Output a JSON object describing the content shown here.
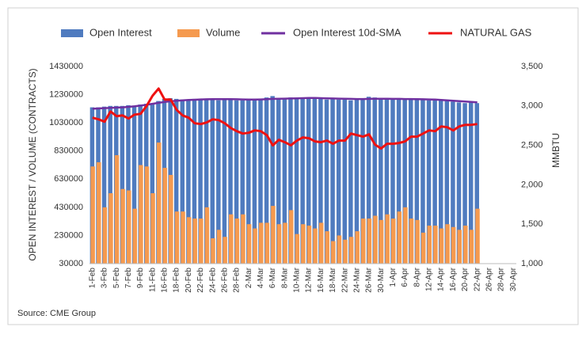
{
  "chart_data": {
    "type": "bar",
    "categories": [
      "1-Feb",
      null,
      "3-Feb",
      null,
      "5-Feb",
      null,
      "7-Feb",
      null,
      "9-Feb",
      null,
      "11-Feb",
      null,
      "16-Feb",
      null,
      "18-Feb",
      null,
      "20-Feb",
      null,
      "22-Feb",
      null,
      "24-Feb",
      null,
      "26-Feb",
      null,
      "28-Feb",
      null,
      "2-Mar",
      null,
      "4-Mar",
      null,
      "6-Mar",
      null,
      "8-Mar",
      null,
      "10-Mar",
      null,
      "12-Mar",
      null,
      "16-Mar",
      null,
      "18-Mar",
      null,
      "22-Mar",
      null,
      "24-Mar",
      null,
      "26-Mar",
      null,
      "30-Mar",
      null,
      "1-Apr",
      null,
      "6-Apr",
      null,
      "8-Apr",
      null,
      "12-Apr",
      null,
      "14-Apr",
      null,
      "16-Apr",
      null,
      "20-Apr",
      null,
      "22-Apr",
      null,
      "26-Apr",
      null,
      "28-Apr",
      null,
      "30-Apr"
    ],
    "series": [
      {
        "name": "Open Interest",
        "type": "bar",
        "color": "#4f7bbf",
        "values": [
          1140000,
          1140000,
          1145000,
          1150000,
          1150000,
          1150000,
          1155000,
          1150000,
          1160000,
          1165000,
          1170000,
          1185000,
          1200000,
          1205000,
          1200000,
          1195000,
          1195000,
          1200000,
          1195000,
          1195000,
          1195000,
          1190000,
          1195000,
          1195000,
          1190000,
          1190000,
          1195000,
          1195000,
          1200000,
          1210000,
          1220000,
          1205000,
          1200000,
          1210000,
          1200000,
          1205000,
          1210000,
          1205000,
          1200000,
          1195000,
          1200000,
          1195000,
          1195000,
          1190000,
          1195000,
          1200000,
          1215000,
          1210000,
          1205000,
          1200000,
          1195000,
          1200000,
          1195000,
          1200000,
          1195000,
          1195000,
          1190000,
          1195000,
          1190000,
          1185000,
          1180000,
          1175000,
          1170000,
          1175000,
          1170000,
          null,
          null,
          null,
          null,
          null,
          null
        ]
      },
      {
        "name": "Volume",
        "type": "bar",
        "color": "#f59a4f",
        "values": [
          720000,
          750000,
          430000,
          530000,
          800000,
          560000,
          550000,
          420000,
          730000,
          720000,
          530000,
          890000,
          710000,
          660000,
          400000,
          400000,
          360000,
          350000,
          350000,
          430000,
          210000,
          270000,
          220000,
          380000,
          350000,
          380000,
          310000,
          280000,
          320000,
          320000,
          440000,
          310000,
          320000,
          410000,
          240000,
          310000,
          300000,
          280000,
          320000,
          260000,
          190000,
          230000,
          200000,
          220000,
          260000,
          350000,
          350000,
          370000,
          340000,
          380000,
          350000,
          400000,
          430000,
          350000,
          340000,
          250000,
          300000,
          300000,
          280000,
          310000,
          290000,
          270000,
          300000,
          270000,
          420000,
          null,
          null,
          null,
          null,
          null,
          null
        ]
      },
      {
        "name": "Open Interest 10d-SMA",
        "type": "line",
        "color": "#7030a0",
        "values": [
          1130000,
          1132000,
          1134000,
          1136000,
          1138000,
          1140000,
          1143000,
          1147000,
          1152000,
          1158000,
          1165000,
          1172000,
          1178000,
          1183000,
          1187000,
          1190000,
          1192000,
          1194000,
          1196000,
          1197000,
          1198000,
          1198000,
          1198000,
          1198000,
          1197000,
          1196000,
          1195000,
          1195000,
          1196000,
          1198000,
          1200000,
          1201000,
          1202000,
          1203000,
          1204000,
          1205000,
          1206000,
          1206000,
          1205000,
          1204000,
          1203000,
          1202000,
          1201000,
          1200000,
          1199000,
          1199000,
          1200000,
          1201000,
          1201000,
          1201000,
          1200000,
          1200000,
          1199000,
          1199000,
          1198000,
          1197000,
          1196000,
          1195000,
          1193000,
          1190000,
          1187000,
          1184000,
          1181000,
          1178000,
          1176000,
          null,
          null,
          null,
          null,
          null,
          null
        ]
      },
      {
        "name": "NATURAL GAS",
        "type": "line",
        "axis": "y2",
        "color": "#ee1111",
        "values": [
          2850,
          2830,
          2800,
          2930,
          2870,
          2880,
          2840,
          2890,
          2900,
          3000,
          3130,
          3220,
          3080,
          3080,
          2950,
          2880,
          2850,
          2780,
          2770,
          2790,
          2830,
          2820,
          2780,
          2720,
          2680,
          2650,
          2660,
          2690,
          2680,
          2630,
          2500,
          2570,
          2540,
          2500,
          2560,
          2600,
          2590,
          2550,
          2540,
          2560,
          2520,
          2560,
          2560,
          2650,
          2630,
          2610,
          2640,
          2510,
          2460,
          2520,
          2520,
          2530,
          2550,
          2610,
          2610,
          2650,
          2690,
          2680,
          2740,
          2730,
          2690,
          2740,
          2760,
          2760,
          2770,
          null,
          null,
          null,
          null,
          null,
          null
        ]
      }
    ],
    "ylabel": "OPEN INTEREST / VOLUME (CONTRACTS)",
    "y2label": "MMBTU",
    "ylim": [
      30000,
      1430000
    ],
    "yticks": [
      30000,
      230000,
      430000,
      630000,
      830000,
      1030000,
      1230000,
      1430000
    ],
    "y2lim": [
      1000,
      3500
    ],
    "y2ticks": [
      {
        "value": 1000,
        "label": "1,000"
      },
      {
        "value": 1500,
        "label": "1,500"
      },
      {
        "value": 2000,
        "label": "2,000"
      },
      {
        "value": 2500,
        "label": "2,500"
      },
      {
        "value": 3000,
        "label": "3,000"
      },
      {
        "value": 3500,
        "label": "3,500"
      }
    ],
    "grid": false,
    "legend": "top",
    "source": "Source: CME Group"
  }
}
